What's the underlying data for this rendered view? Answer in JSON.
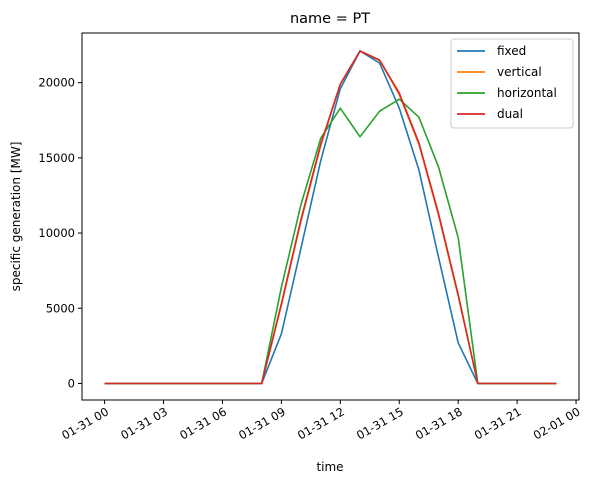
{
  "chart_data": {
    "type": "line",
    "title": "name = PT",
    "xlabel": "time",
    "ylabel": "specific generation [MW]",
    "x_hours": [
      0,
      1,
      2,
      3,
      4,
      5,
      6,
      7,
      8,
      9,
      10,
      11,
      12,
      13,
      14,
      15,
      16,
      17,
      18,
      19,
      20,
      21,
      22,
      23
    ],
    "xticks": [
      {
        "hour": 0,
        "label": "01-31 00"
      },
      {
        "hour": 3,
        "label": "01-31 03"
      },
      {
        "hour": 6,
        "label": "01-31 06"
      },
      {
        "hour": 9,
        "label": "01-31 09"
      },
      {
        "hour": 12,
        "label": "01-31 12"
      },
      {
        "hour": 15,
        "label": "01-31 15"
      },
      {
        "hour": 18,
        "label": "01-31 18"
      },
      {
        "hour": 21,
        "label": "01-31 21"
      },
      {
        "hour": 24,
        "label": "02-01 00"
      }
    ],
    "xlim": [
      -1.15,
      24.15
    ],
    "yticks": [
      0,
      5000,
      10000,
      15000,
      20000
    ],
    "ylim": [
      -1100,
      23300
    ],
    "grid": false,
    "legend_position": "top-right",
    "series": [
      {
        "name": "fixed",
        "color": "#1f77b4",
        "values": [
          0,
          0,
          0,
          0,
          0,
          0,
          0,
          0,
          0,
          3300,
          9000,
          14800,
          19600,
          22100,
          21300,
          18300,
          14200,
          8400,
          2700,
          0,
          0,
          0,
          0,
          0
        ]
      },
      {
        "name": "vertical",
        "color": "#ff7f0e",
        "values": [
          0,
          0,
          0,
          0,
          0,
          0,
          0,
          0,
          0,
          5200,
          10800,
          15800,
          19900,
          22100,
          21500,
          19200,
          15900,
          11200,
          5800,
          0,
          0,
          0,
          0,
          0
        ]
      },
      {
        "name": "horizontal",
        "color": "#2ca02c",
        "values": [
          0,
          0,
          0,
          0,
          0,
          0,
          0,
          0,
          0,
          6400,
          11900,
          16300,
          18300,
          16400,
          18100,
          18900,
          17700,
          14400,
          9700,
          0,
          0,
          0,
          0,
          0
        ]
      },
      {
        "name": "dual",
        "color": "#d62728",
        "values": [
          0,
          0,
          0,
          0,
          0,
          0,
          0,
          0,
          0,
          5300,
          10900,
          15900,
          19900,
          22100,
          21500,
          19300,
          16000,
          11300,
          5900,
          0,
          0,
          0,
          0,
          0
        ]
      }
    ]
  }
}
